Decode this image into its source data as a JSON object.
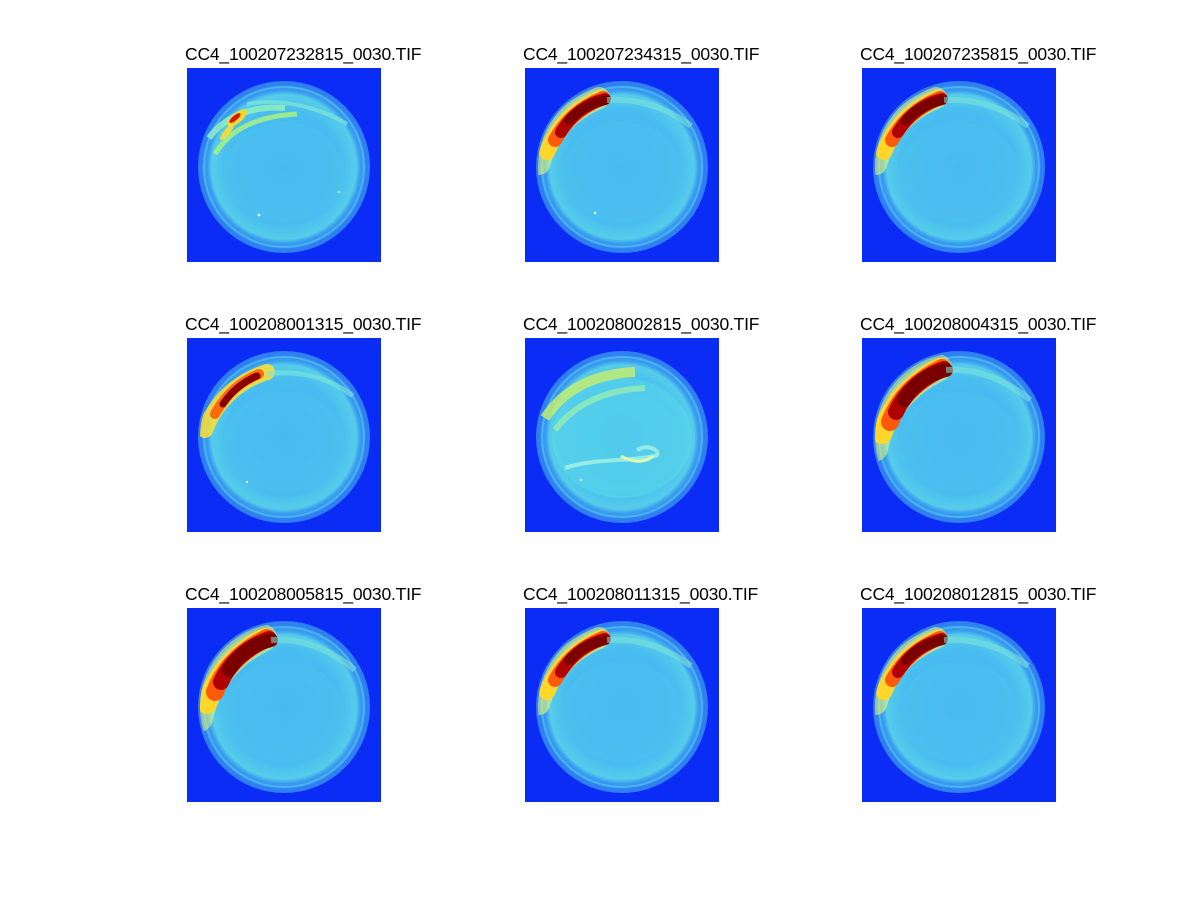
{
  "colors": {
    "background_blue": "#0a2cf5",
    "rim_blue": "#3ea9f2",
    "sky_cyan": "#46bbf0",
    "glow_cyan": "#5fdfe6",
    "aurora_yellow": "#ffd62a",
    "aurora_orange": "#ff6a0d",
    "aurora_red": "#d00000",
    "aurora_darkred": "#7a0000"
  },
  "panels": [
    {
      "title": "CC4_100207232815_0030.TIF",
      "variant": "faint-arcs"
    },
    {
      "title": "CC4_100207234315_0030.TIF",
      "variant": "bright-arc"
    },
    {
      "title": "CC4_100207235815_0030.TIF",
      "variant": "bright-arc"
    },
    {
      "title": "CC4_100208001315_0030.TIF",
      "variant": "medium-arc"
    },
    {
      "title": "CC4_100208002815_0030.TIF",
      "variant": "diffuse"
    },
    {
      "title": "CC4_100208004315_0030.TIF",
      "variant": "large-arc"
    },
    {
      "title": "CC4_100208005815_0030.TIF",
      "variant": "large-arc"
    },
    {
      "title": "CC4_100208011315_0030.TIF",
      "variant": "bright-arc"
    },
    {
      "title": "CC4_100208012815_0030.TIF",
      "variant": "bright-arc"
    }
  ]
}
